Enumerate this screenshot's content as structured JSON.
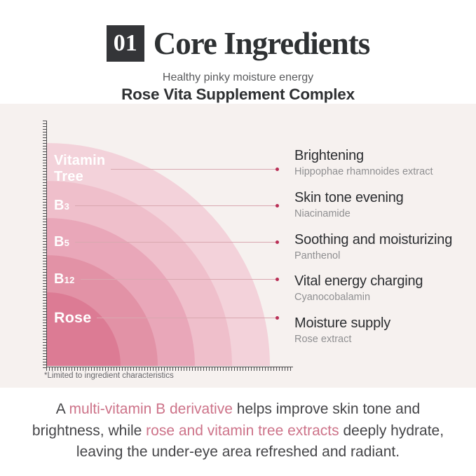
{
  "header": {
    "number": "01",
    "title": "Core Ingredients",
    "tagline": "Healthy pinky moisture energy",
    "subtitle": "Rose Vita Supplement Complex"
  },
  "chart": {
    "type": "concentric-quarter-rings",
    "rings": [
      {
        "label": "Vitamin Tree",
        "label_lines": [
          "Vitamin",
          "Tree"
        ],
        "radius": 318,
        "color": "#f3d2da",
        "benefit": "Brightening",
        "ingredient": "Hippophae rhamnoides extract"
      },
      {
        "label": "B3",
        "label_main": "B",
        "label_sub": "3",
        "radius": 264,
        "color": "#efbfcb",
        "benefit": "Skin tone evening",
        "ingredient": "Niacinamide"
      },
      {
        "label": "B5",
        "label_main": "B",
        "label_sub": "5",
        "radius": 211,
        "color": "#e9a7b9",
        "benefit": "Soothing and moisturizing",
        "ingredient": "Panthenol"
      },
      {
        "label": "B12",
        "label_main": "B",
        "label_sub": "12",
        "radius": 158,
        "color": "#e292a6",
        "benefit": "Vital energy charging",
        "ingredient": "Cyanocobalamin"
      },
      {
        "label": "Rose",
        "radius": 105,
        "color": "#dc7b94",
        "benefit": "Moisture supply",
        "ingredient": "Rose extract"
      }
    ],
    "accent_colors": {
      "leader_line": "#d9a8b0",
      "dot": "#b92f56",
      "panel_background": "#f6f1ef"
    },
    "footnote": "*Limited to ingredient characteristics"
  },
  "description": {
    "segments": [
      {
        "text": "A ",
        "highlight": false
      },
      {
        "text": "multi-vitamin B derivative",
        "highlight": true
      },
      {
        "text": " helps improve skin tone and brightness, while ",
        "highlight": false
      },
      {
        "text": "rose and vitamin tree extracts",
        "highlight": true
      },
      {
        "text": " deeply hydrate, leaving the under-eye area refreshed and radiant.",
        "highlight": false
      }
    ]
  }
}
